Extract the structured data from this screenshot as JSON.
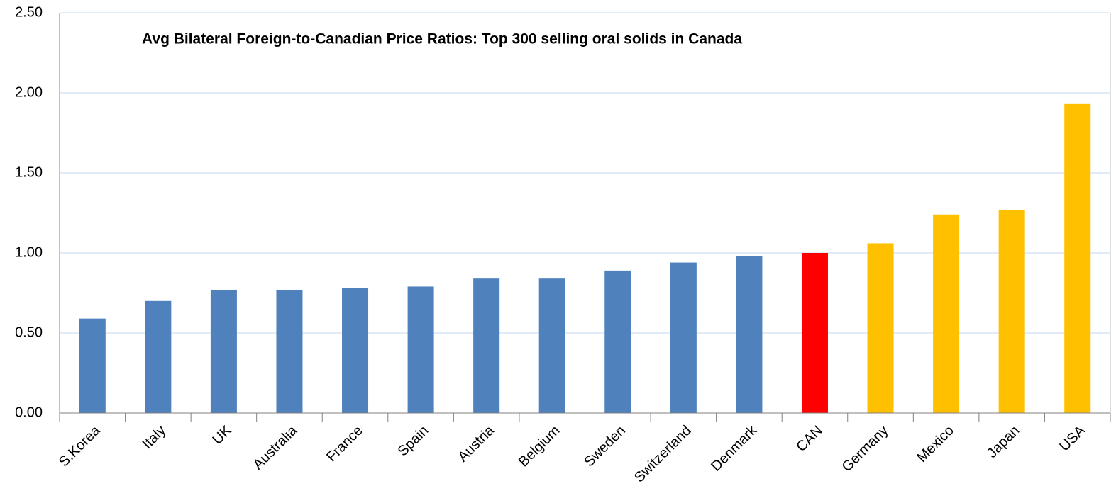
{
  "chart_data": {
    "type": "bar",
    "title": "Avg Bilateral Foreign-to-Canadian Price Ratios: Top 300 selling oral solids in Canada",
    "categories": [
      "S.Korea",
      "Italy",
      "UK",
      "Australia",
      "France",
      "Spain",
      "Austria",
      "Belgium",
      "Sweden",
      "Switzerland",
      "Denmark",
      "CAN",
      "Germany",
      "Mexico",
      "Japan",
      "USA"
    ],
    "values": [
      0.59,
      0.7,
      0.77,
      0.77,
      0.78,
      0.79,
      0.84,
      0.84,
      0.89,
      0.94,
      0.98,
      1.0,
      1.06,
      1.24,
      1.27,
      1.93
    ],
    "colors": [
      "#4f81bd",
      "#4f81bd",
      "#4f81bd",
      "#4f81bd",
      "#4f81bd",
      "#4f81bd",
      "#4f81bd",
      "#4f81bd",
      "#4f81bd",
      "#4f81bd",
      "#4f81bd",
      "#ff0000",
      "#ffc000",
      "#ffc000",
      "#ffc000",
      "#ffc000"
    ],
    "ylim": [
      0,
      2.5
    ],
    "yticks": [
      {
        "value": 0,
        "label": "0.00"
      },
      {
        "value": 0.5,
        "label": "0.50"
      },
      {
        "value": 1,
        "label": "1.00"
      },
      {
        "value": 1.5,
        "label": "1.50"
      },
      {
        "value": 2,
        "label": "2.00"
      },
      {
        "value": 2.5,
        "label": "2.50"
      }
    ],
    "grid": true
  }
}
